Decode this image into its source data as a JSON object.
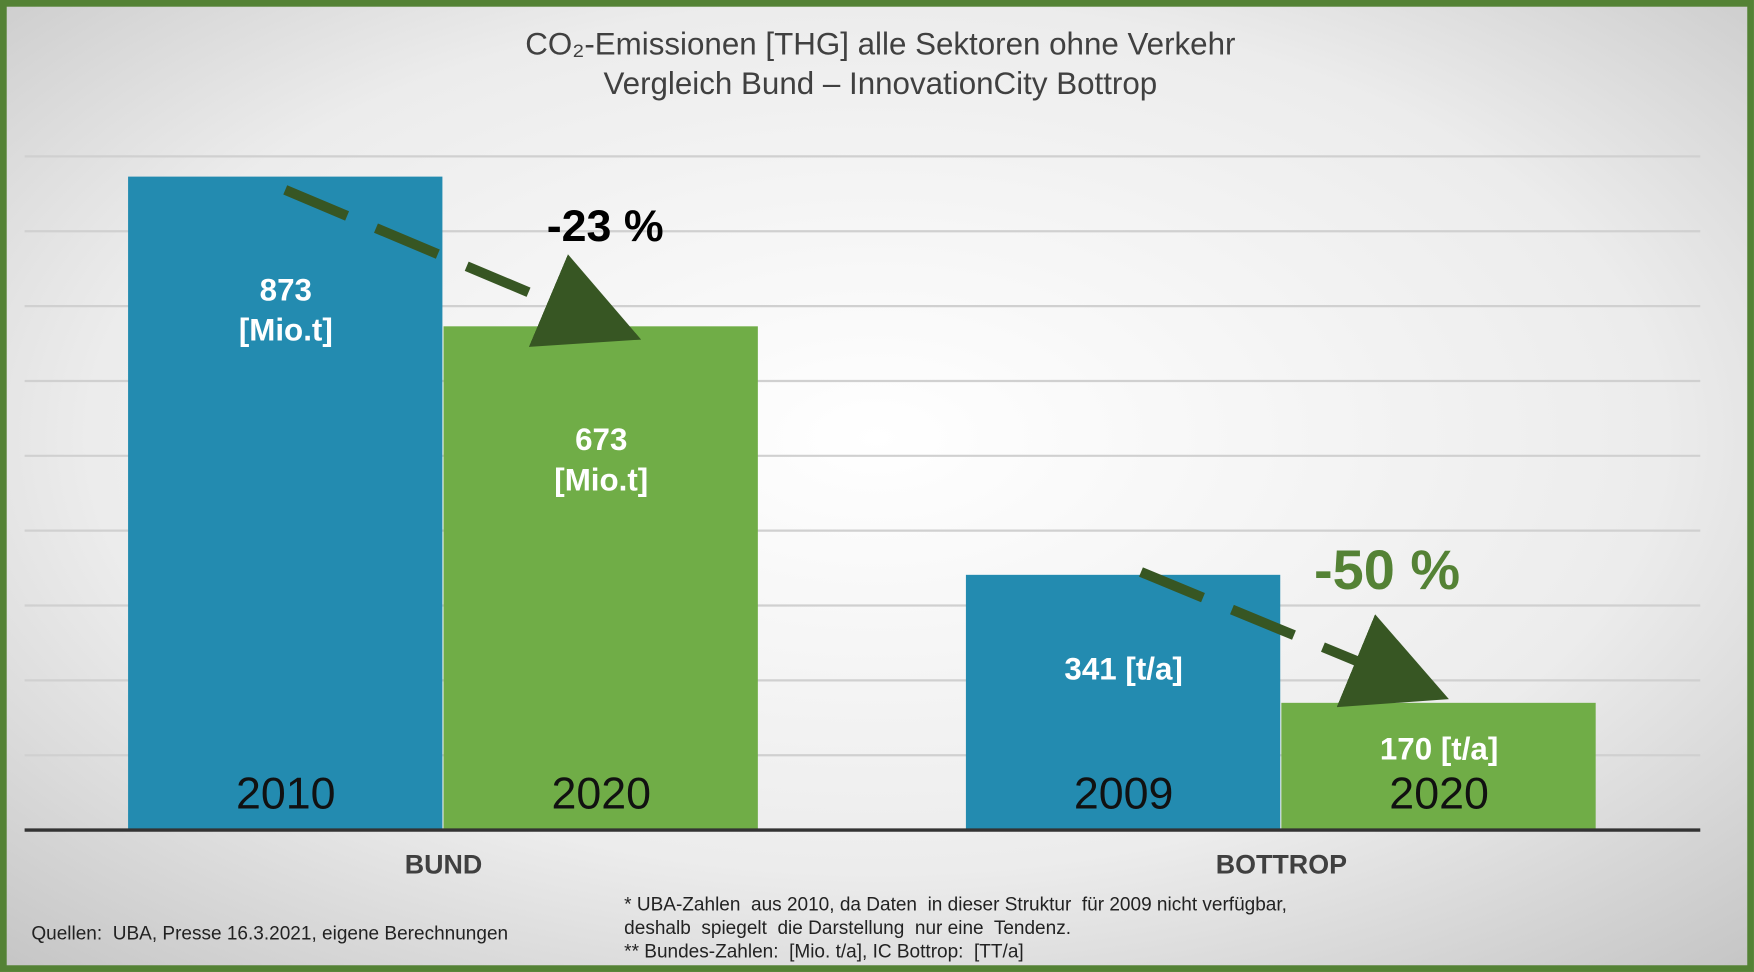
{
  "chart_data": {
    "type": "bar",
    "title": "CO₂-Emissionen [THG] alle Sektoren ohne Verkehr",
    "subtitle": "Vergleich Bund – InnovationCity Bottrop",
    "categories": [
      "BUND",
      "BOTTROP"
    ],
    "series": [
      {
        "color": "#238bb0",
        "labels": [
          "2010",
          "2009"
        ],
        "values": [
          873,
          341
        ],
        "value_labels": [
          "873 [Mio.t]",
          "341 [t/a]"
        ]
      },
      {
        "color": "#70ad47",
        "labels": [
          "2020",
          "2020"
        ],
        "values": [
          673,
          170
        ],
        "value_labels": [
          "673 [Mio.t]",
          "170 [t/a]"
        ]
      }
    ],
    "ylim": [
      0,
      900
    ],
    "yticks": [
      0,
      100,
      200,
      300,
      400,
      500,
      600,
      700,
      800,
      900
    ],
    "grid": true,
    "annotations": [
      "-23 %",
      "-50 %"
    ],
    "source": "Quellen:  UBA, Presse 16.3.2021, eigene Berechnungen",
    "footnotes": [
      "* UBA-Zahlen  aus 2010, da Daten  in dieser Struktur  für 2009 nicht verfügbar,",
      "deshalb  spiegelt  die Darstellung  nur eine  Tendenz.",
      "** Bundes-Zahlen:  [Mio. t/a], IC Bottrop:  [TT/a]"
    ]
  }
}
